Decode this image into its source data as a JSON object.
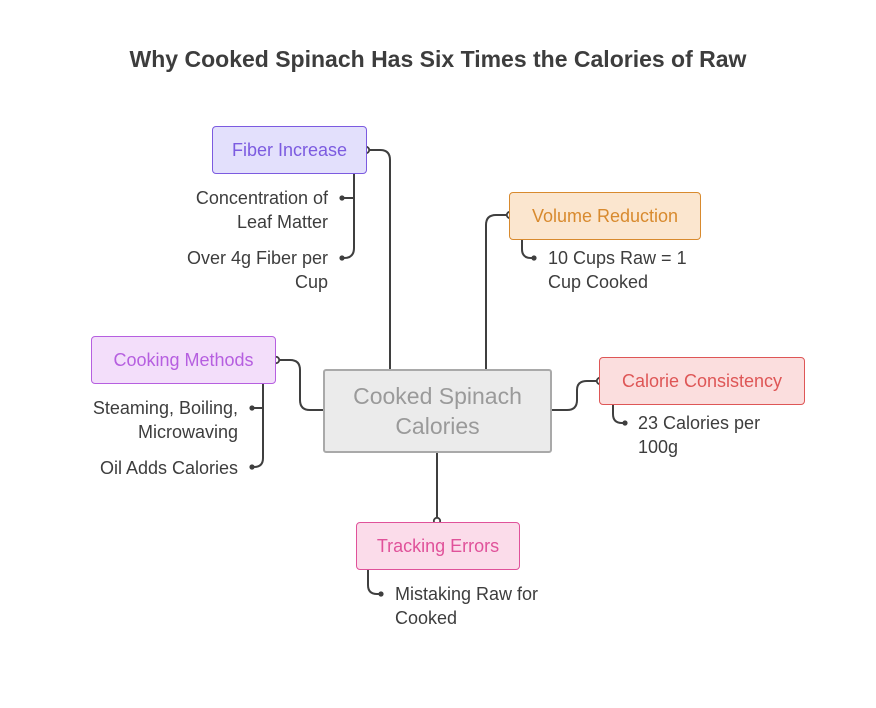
{
  "title": "Why Cooked Spinach Has Six Times the Calories of Raw",
  "center": {
    "line1": "Cooked Spinach",
    "line2": "Calories"
  },
  "branches": {
    "fiber": {
      "label": "Fiber Increase",
      "color": "#7c5be0",
      "fill": "#e3e0fc",
      "leaves": [
        [
          "Concentration of",
          "Leaf Matter"
        ],
        [
          "Over 4g Fiber per",
          "Cup"
        ]
      ]
    },
    "volume": {
      "label": "Volume Reduction",
      "color": "#d88a2e",
      "fill": "#fbe6cf",
      "leaves": [
        [
          "10 Cups Raw = 1",
          "Cup Cooked"
        ]
      ]
    },
    "cooking": {
      "label": "Cooking Methods",
      "color": "#b65fe0",
      "fill": "#f3defa",
      "leaves": [
        [
          "Steaming, Boiling,",
          "Microwaving"
        ],
        [
          "Oil Adds Calories"
        ]
      ]
    },
    "calorie": {
      "label": "Calorie Consistency",
      "color": "#de5656",
      "fill": "#fbdede",
      "leaves": [
        [
          "23 Calories per",
          "100g"
        ]
      ]
    },
    "tracking": {
      "label": "Tracking Errors",
      "color": "#e0529a",
      "fill": "#fbdcea",
      "leaves": [
        [
          "Mistaking Raw for",
          "Cooked"
        ]
      ]
    }
  }
}
